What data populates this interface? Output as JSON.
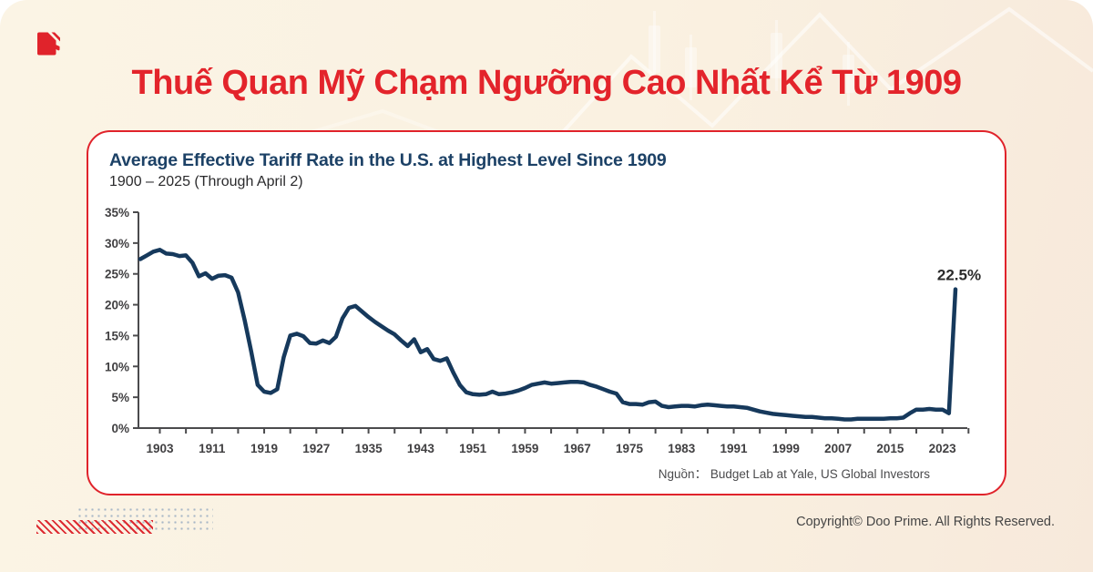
{
  "header": {
    "title": "Thuế Quan Mỹ Chạm Ngưỡng Cao Nhất Kể Từ 1909"
  },
  "source": {
    "label": "Nguồn：",
    "text": "Budget Lab at Yale, US Global Investors"
  },
  "footer": {
    "copyright": "Copyright© Doo Prime. All Rights Reserved."
  },
  "brand": {
    "logo_icon": "doo-prime-logo"
  },
  "colors": {
    "accent_red": "#e3242b",
    "card_border_red": "#e0232b",
    "line_navy": "#16395c",
    "title_navy": "#1c4166",
    "axis_gray": "#4b4b4d",
    "tick_label_gray": "#414042",
    "background_cream": "#faf1e1"
  },
  "chart_data": {
    "type": "line",
    "title": "Average Effective Tariff Rate in the U.S. at Highest Level Since 1909",
    "subtitle": "1900 – 2025 (Through April 2)",
    "x_start": 1900,
    "x_end": 2025,
    "ylim": [
      0,
      35
    ],
    "y_tick_labels": [
      "0%",
      "5%",
      "10%",
      "15%",
      "20%",
      "25%",
      "30%",
      "35%"
    ],
    "x_tick_labels": [
      "1903",
      "1911",
      "1919",
      "1927",
      "1935",
      "1943",
      "1951",
      "1959",
      "1967",
      "1975",
      "1983",
      "1991",
      "1999",
      "2007",
      "2015",
      "2023"
    ],
    "x_minor_ticks": {
      "start": 1903,
      "step": 4,
      "end": 2027
    },
    "grid": false,
    "legend_position": "none",
    "annotation": {
      "year": 2025,
      "value": 22.5,
      "label": "22.5%"
    },
    "series": [
      {
        "name": "Average effective tariff rate",
        "values": [
          27.4,
          28.0,
          28.6,
          28.9,
          28.3,
          28.2,
          27.9,
          28.0,
          26.8,
          24.6,
          25.1,
          24.2,
          24.7,
          24.8,
          24.4,
          22.0,
          17.5,
          12.5,
          7.0,
          5.9,
          5.7,
          6.3,
          11.5,
          15.0,
          15.3,
          14.9,
          13.8,
          13.7,
          14.2,
          13.8,
          14.8,
          17.8,
          19.5,
          19.8,
          18.9,
          18.0,
          17.2,
          16.5,
          15.8,
          15.2,
          14.2,
          13.3,
          14.4,
          12.3,
          12.8,
          11.2,
          10.9,
          11.3,
          9.0,
          7.0,
          5.8,
          5.5,
          5.4,
          5.5,
          5.9,
          5.5,
          5.6,
          5.8,
          6.1,
          6.5,
          7.0,
          7.2,
          7.4,
          7.2,
          7.3,
          7.4,
          7.5,
          7.5,
          7.4,
          7.0,
          6.7,
          6.3,
          5.9,
          5.6,
          4.2,
          3.9,
          3.9,
          3.8,
          4.2,
          4.3,
          3.6,
          3.4,
          3.5,
          3.6,
          3.6,
          3.5,
          3.7,
          3.8,
          3.7,
          3.6,
          3.5,
          3.5,
          3.4,
          3.3,
          3.0,
          2.7,
          2.5,
          2.3,
          2.2,
          2.1,
          2.0,
          1.9,
          1.8,
          1.8,
          1.7,
          1.6,
          1.6,
          1.5,
          1.4,
          1.4,
          1.5,
          1.5,
          1.5,
          1.5,
          1.5,
          1.6,
          1.6,
          1.7,
          2.4,
          3.0,
          3.0,
          3.1,
          3.0,
          3.0,
          2.4,
          22.5
        ]
      }
    ]
  }
}
